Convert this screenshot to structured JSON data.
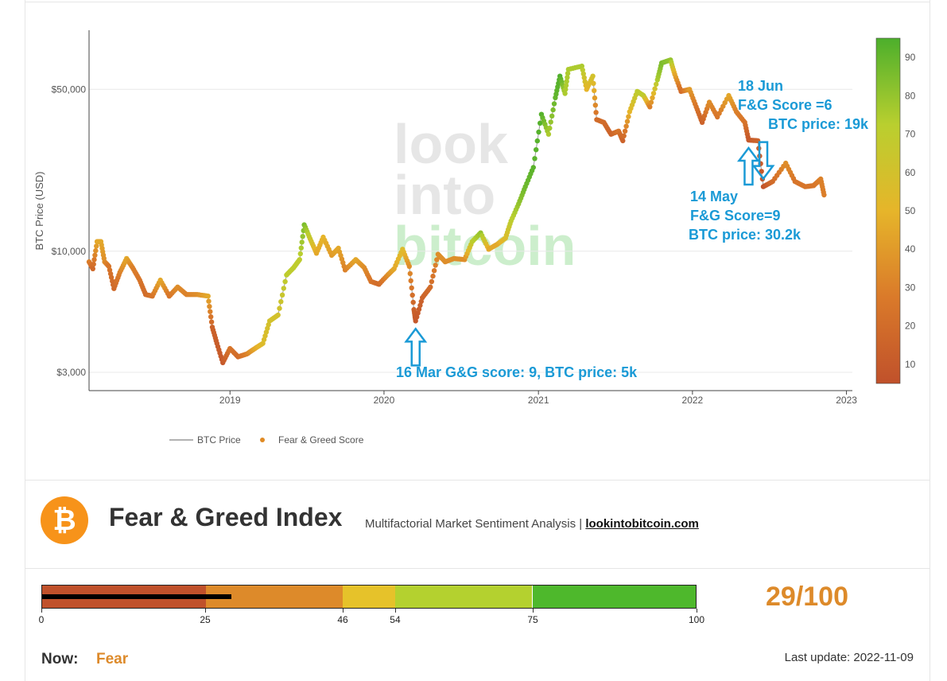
{
  "chart_data": {
    "type": "scatter",
    "ylabel": "BTC Price (USD)",
    "y_scale": "log",
    "ylim": [
      2500,
      90000
    ],
    "y_ticks": [
      {
        "value": 3000,
        "label": "$3,000"
      },
      {
        "value": 10000,
        "label": "$10,000"
      },
      {
        "value": 50000,
        "label": "$50,000"
      }
    ],
    "x_range": [
      "2018-02-01",
      "2023-01-15"
    ],
    "x_ticks": [
      "2019",
      "2020",
      "2021",
      "2022",
      "2023"
    ],
    "grid": true,
    "legend_position": "bottom",
    "series": [
      {
        "name": "BTC Price",
        "style": "line",
        "color": "#aaaaaa"
      },
      {
        "name": "Fear & Greed Score",
        "style": "markers",
        "color": "#e08a24"
      }
    ],
    "colorbar": {
      "range": [
        5,
        95
      ],
      "ticks": [
        10,
        20,
        30,
        40,
        50,
        60,
        70,
        80,
        90
      ],
      "colors": [
        "#c0512b",
        "#da7a2a",
        "#e6b52a",
        "#b9cf2f",
        "#4caf2c"
      ]
    },
    "points": [
      {
        "date": "2018-02-01",
        "price": 9000,
        "score": 30
      },
      {
        "date": "2018-02-10",
        "price": 8400,
        "score": 18
      },
      {
        "date": "2018-02-20",
        "price": 11000,
        "score": 45
      },
      {
        "date": "2018-03-01",
        "price": 11000,
        "score": 45
      },
      {
        "date": "2018-03-10",
        "price": 9000,
        "score": 35
      },
      {
        "date": "2018-03-20",
        "price": 8600,
        "score": 25
      },
      {
        "date": "2018-04-01",
        "price": 6900,
        "score": 18
      },
      {
        "date": "2018-04-15",
        "price": 8100,
        "score": 30
      },
      {
        "date": "2018-05-01",
        "price": 9300,
        "score": 45
      },
      {
        "date": "2018-05-15",
        "price": 8500,
        "score": 30
      },
      {
        "date": "2018-06-01",
        "price": 7500,
        "score": 25
      },
      {
        "date": "2018-06-15",
        "price": 6500,
        "score": 20
      },
      {
        "date": "2018-07-01",
        "price": 6400,
        "score": 25
      },
      {
        "date": "2018-07-20",
        "price": 7500,
        "score": 45
      },
      {
        "date": "2018-08-10",
        "price": 6400,
        "score": 25
      },
      {
        "date": "2018-08-30",
        "price": 7000,
        "score": 35
      },
      {
        "date": "2018-09-20",
        "price": 6500,
        "score": 30
      },
      {
        "date": "2018-10-15",
        "price": 6500,
        "score": 35
      },
      {
        "date": "2018-11-10",
        "price": 6400,
        "score": 45
      },
      {
        "date": "2018-11-20",
        "price": 4700,
        "score": 15
      },
      {
        "date": "2018-12-01",
        "price": 4000,
        "score": 12
      },
      {
        "date": "2018-12-15",
        "price": 3300,
        "score": 10
      },
      {
        "date": "2019-01-01",
        "price": 3800,
        "score": 25
      },
      {
        "date": "2019-01-20",
        "price": 3500,
        "score": 20
      },
      {
        "date": "2019-02-10",
        "price": 3600,
        "score": 30
      },
      {
        "date": "2019-03-01",
        "price": 3800,
        "score": 45
      },
      {
        "date": "2019-03-20",
        "price": 4000,
        "score": 55
      },
      {
        "date": "2019-04-05",
        "price": 5000,
        "score": 60
      },
      {
        "date": "2019-04-25",
        "price": 5300,
        "score": 60
      },
      {
        "date": "2019-05-15",
        "price": 7900,
        "score": 70
      },
      {
        "date": "2019-06-01",
        "price": 8500,
        "score": 70
      },
      {
        "date": "2019-06-15",
        "price": 9200,
        "score": 70
      },
      {
        "date": "2019-06-26",
        "price": 13000,
        "score": 85
      },
      {
        "date": "2019-07-10",
        "price": 11300,
        "score": 65
      },
      {
        "date": "2019-07-25",
        "price": 9800,
        "score": 45
      },
      {
        "date": "2019-08-10",
        "price": 11500,
        "score": 50
      },
      {
        "date": "2019-08-30",
        "price": 9600,
        "score": 40
      },
      {
        "date": "2019-09-15",
        "price": 10300,
        "score": 45
      },
      {
        "date": "2019-10-01",
        "price": 8300,
        "score": 30
      },
      {
        "date": "2019-10-26",
        "price": 9200,
        "score": 45
      },
      {
        "date": "2019-11-15",
        "price": 8500,
        "score": 35
      },
      {
        "date": "2019-12-01",
        "price": 7400,
        "score": 25
      },
      {
        "date": "2019-12-20",
        "price": 7200,
        "score": 20
      },
      {
        "date": "2020-01-10",
        "price": 7900,
        "score": 35
      },
      {
        "date": "2020-01-25",
        "price": 8400,
        "score": 45
      },
      {
        "date": "2020-02-14",
        "price": 10200,
        "score": 55
      },
      {
        "date": "2020-03-01",
        "price": 8600,
        "score": 35
      },
      {
        "date": "2020-03-12",
        "price": 5600,
        "score": 15
      },
      {
        "date": "2020-03-16",
        "price": 5000,
        "score": 9
      },
      {
        "date": "2020-04-01",
        "price": 6300,
        "score": 15
      },
      {
        "date": "2020-04-20",
        "price": 7000,
        "score": 20
      },
      {
        "date": "2020-05-08",
        "price": 9700,
        "score": 35
      },
      {
        "date": "2020-05-25",
        "price": 9000,
        "score": 35
      },
      {
        "date": "2020-06-15",
        "price": 9300,
        "score": 35
      },
      {
        "date": "2020-07-10",
        "price": 9200,
        "score": 35
      },
      {
        "date": "2020-07-28",
        "price": 11000,
        "score": 70
      },
      {
        "date": "2020-08-17",
        "price": 12000,
        "score": 80
      },
      {
        "date": "2020-09-05",
        "price": 10200,
        "score": 45
      },
      {
        "date": "2020-09-25",
        "price": 10700,
        "score": 45
      },
      {
        "date": "2020-10-15",
        "price": 11400,
        "score": 55
      },
      {
        "date": "2020-10-28",
        "price": 13500,
        "score": 70
      },
      {
        "date": "2020-11-15",
        "price": 16000,
        "score": 80
      },
      {
        "date": "2020-12-01",
        "price": 19000,
        "score": 88
      },
      {
        "date": "2020-12-20",
        "price": 23000,
        "score": 92
      },
      {
        "date": "2021-01-08",
        "price": 39000,
        "score": 93
      },
      {
        "date": "2021-01-25",
        "price": 32000,
        "score": 75
      },
      {
        "date": "2021-02-10",
        "price": 46000,
        "score": 90
      },
      {
        "date": "2021-02-21",
        "price": 57000,
        "score": 94
      },
      {
        "date": "2021-03-05",
        "price": 48000,
        "score": 75
      },
      {
        "date": "2021-03-13",
        "price": 61000,
        "score": 75
      },
      {
        "date": "2021-04-14",
        "price": 63000,
        "score": 75
      },
      {
        "date": "2021-04-25",
        "price": 50000,
        "score": 50
      },
      {
        "date": "2021-05-10",
        "price": 57000,
        "score": 60
      },
      {
        "date": "2021-05-19",
        "price": 37000,
        "score": 20
      },
      {
        "date": "2021-06-05",
        "price": 36000,
        "score": 20
      },
      {
        "date": "2021-06-22",
        "price": 32000,
        "score": 15
      },
      {
        "date": "2021-07-10",
        "price": 33000,
        "score": 25
      },
      {
        "date": "2021-07-20",
        "price": 30000,
        "score": 15
      },
      {
        "date": "2021-08-05",
        "price": 40000,
        "score": 50
      },
      {
        "date": "2021-08-23",
        "price": 49000,
        "score": 70
      },
      {
        "date": "2021-09-07",
        "price": 47000,
        "score": 70
      },
      {
        "date": "2021-09-22",
        "price": 42000,
        "score": 30
      },
      {
        "date": "2021-10-10",
        "price": 55000,
        "score": 75
      },
      {
        "date": "2021-10-20",
        "price": 65000,
        "score": 85
      },
      {
        "date": "2021-11-10",
        "price": 67000,
        "score": 80
      },
      {
        "date": "2021-11-20",
        "price": 58000,
        "score": 45
      },
      {
        "date": "2021-12-05",
        "price": 49000,
        "score": 20
      },
      {
        "date": "2021-12-25",
        "price": 50000,
        "score": 40
      },
      {
        "date": "2022-01-10",
        "price": 42000,
        "score": 25
      },
      {
        "date": "2022-01-24",
        "price": 36000,
        "score": 15
      },
      {
        "date": "2022-02-10",
        "price": 44000,
        "score": 35
      },
      {
        "date": "2022-03-01",
        "price": 38000,
        "score": 25
      },
      {
        "date": "2022-03-28",
        "price": 47000,
        "score": 45
      },
      {
        "date": "2022-04-15",
        "price": 40000,
        "score": 30
      },
      {
        "date": "2022-05-05",
        "price": 36000,
        "score": 25
      },
      {
        "date": "2022-05-14",
        "price": 30200,
        "score": 9
      },
      {
        "date": "2022-06-05",
        "price": 30000,
        "score": 15
      },
      {
        "date": "2022-06-18",
        "price": 19000,
        "score": 6
      },
      {
        "date": "2022-07-10",
        "price": 20000,
        "score": 20
      },
      {
        "date": "2022-08-10",
        "price": 24000,
        "score": 35
      },
      {
        "date": "2022-09-01",
        "price": 20000,
        "score": 25
      },
      {
        "date": "2022-09-25",
        "price": 19000,
        "score": 25
      },
      {
        "date": "2022-10-15",
        "price": 19200,
        "score": 25
      },
      {
        "date": "2022-11-01",
        "price": 20500,
        "score": 30
      },
      {
        "date": "2022-11-09",
        "price": 17500,
        "score": 29
      }
    ],
    "annotations": [
      {
        "date": "2020-03-16",
        "price": 5000,
        "arrow": "up",
        "lines": [
          "16 Mar G&G score: 9, BTC price: 5k"
        ]
      },
      {
        "date": "2022-05-14",
        "price": 30200,
        "arrow": "up",
        "lines": [
          "14 May",
          "F&G Score=9",
          "BTC price: 30.2k"
        ]
      },
      {
        "date": "2022-06-18",
        "price": 19000,
        "arrow": "down",
        "lines": [
          "18 Jun",
          "F&G Score =6",
          "BTC price: 19k"
        ]
      }
    ],
    "watermark": [
      "look",
      "into",
      "bitcoin"
    ]
  },
  "header": {
    "logo_glyph": "₿",
    "title": "Fear & Greed Index",
    "subtitle": "Multifactorial Market Sentiment Analysis | ",
    "link_text": "lookintobitcoin.com"
  },
  "gauge": {
    "value": 29,
    "segments": [
      {
        "from": 0,
        "to": 25,
        "color": "#c0512b"
      },
      {
        "from": 25,
        "to": 46,
        "color": "#dd8a2a"
      },
      {
        "from": 46,
        "to": 54,
        "color": "#e6c22a"
      },
      {
        "from": 54,
        "to": 75,
        "color": "#b4d12f"
      },
      {
        "from": 75,
        "to": 100,
        "color": "#4eb82c"
      }
    ],
    "ticks": [
      "0",
      "25",
      "46",
      "54",
      "75",
      "100"
    ],
    "score_text": "29/100",
    "score_color": "#dd8a2a"
  },
  "status": {
    "now_label": "Now:",
    "now_value": "Fear",
    "now_color": "#dd8a2a",
    "last_update": "Last update: 2022-11-09"
  }
}
